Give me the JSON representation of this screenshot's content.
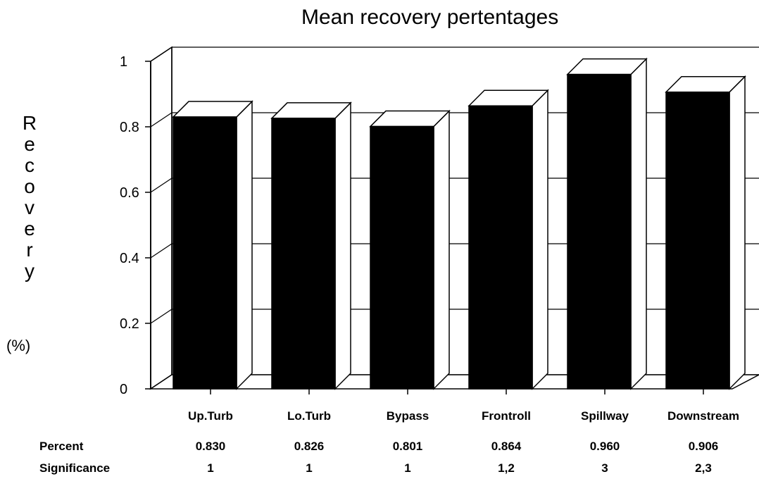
{
  "chart_data": {
    "type": "bar",
    "title": "Mean recovery pertentages",
    "ylabel": "Recovery",
    "yunit": "(%)",
    "xlabel": "",
    "categories": [
      "Up.Turb",
      "Lo.Turb",
      "Bypass",
      "Frontroll",
      "Spillway",
      "Downstream"
    ],
    "values": [
      0.83,
      0.826,
      0.801,
      0.864,
      0.96,
      0.906
    ],
    "ylim": [
      0,
      1
    ],
    "yticks": [
      "0",
      "0.2",
      "0.4",
      "0.6",
      "0.8",
      "1"
    ],
    "grid": true,
    "style": "3d",
    "bar_color": "#000000",
    "table": {
      "percent_label": "Percent",
      "percent": [
        "0.830",
        "0.826",
        "0.801",
        "0.864",
        "0.960",
        "0.906"
      ],
      "significance_label": "Significance",
      "significance": [
        "1",
        "1",
        "1",
        "1,2",
        "3",
        "2,3"
      ]
    }
  }
}
